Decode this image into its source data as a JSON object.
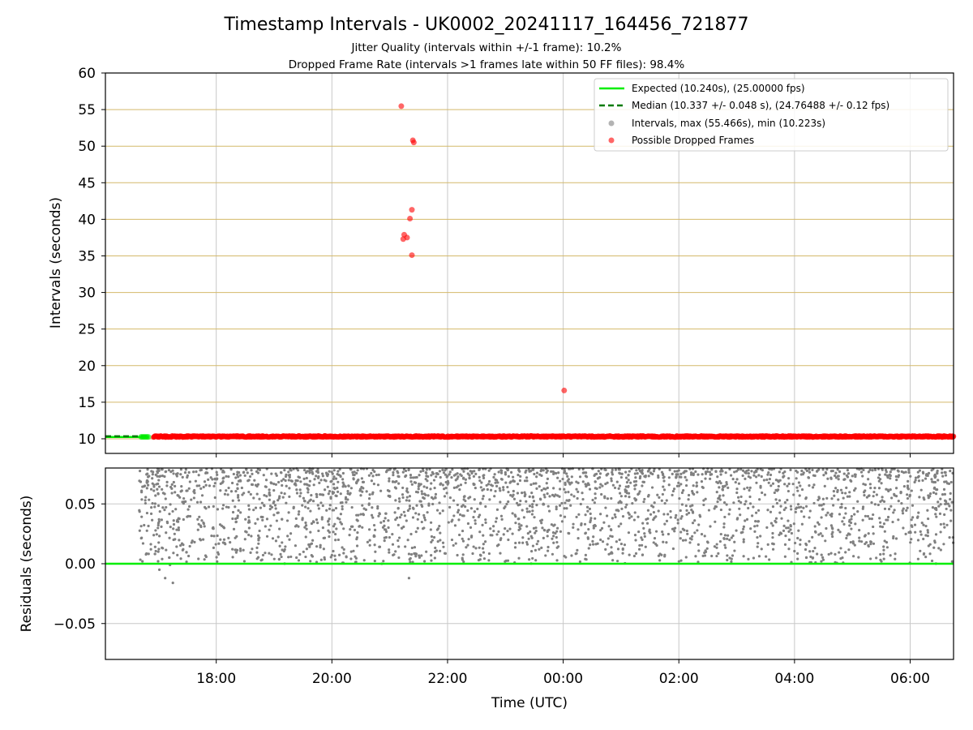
{
  "chart_data": [
    {
      "type": "scatter",
      "title": "Timestamp Intervals - UK0002_20241117_164456_721877",
      "subtitle_lines": [
        "Jitter Quality (intervals within +/-1 frame): 10.2%",
        "Dropped Frame Rate (intervals >1 frames late within 50 FF files): 98.4%"
      ],
      "xlabel": "",
      "ylabel": "Intervals (seconds)",
      "xlim": [
        "2024-11-17 16:05",
        "2024-11-18 06:45"
      ],
      "ylim": [
        8.0,
        60.0
      ],
      "yticks": [
        10,
        15,
        20,
        25,
        30,
        35,
        40,
        45,
        50,
        55,
        60
      ],
      "grid": true,
      "legend_position": "top-right",
      "legend": [
        "Expected (10.240s), (25.00000 fps)",
        "Median (10.337 +/- 0.048 s), (24.76488 +/- 0.12 fps)",
        "Intervals, max (55.466s), min (10.223s)",
        "Possible Dropped Frames"
      ],
      "expected_interval": 10.24,
      "median_interval": 10.337,
      "series": [
        {
          "name": "Possible Dropped Frames",
          "points": [
            {
              "x": "2024-11-17 21:12",
              "y": 55.47
            },
            {
              "x": "2024-11-17 21:24",
              "y": 50.8
            },
            {
              "x": "2024-11-17 21:25",
              "y": 50.5
            },
            {
              "x": "2024-11-17 21:23",
              "y": 41.3
            },
            {
              "x": "2024-11-17 21:21",
              "y": 40.1
            },
            {
              "x": "2024-11-17 21:15",
              "y": 37.9
            },
            {
              "x": "2024-11-17 21:18",
              "y": 37.5
            },
            {
              "x": "2024-11-17 21:14",
              "y": 37.3
            },
            {
              "x": "2024-11-17 21:23",
              "y": 35.1
            },
            {
              "x": "2024-11-18 00:01",
              "y": 16.6
            }
          ],
          "dense_band": {
            "x_start": "2024-11-17 16:55",
            "x_end": "2024-11-18 06:45",
            "y_min": 10.22,
            "y_max": 10.4
          }
        }
      ]
    },
    {
      "type": "scatter",
      "title": "",
      "xlabel": "Time (UTC)",
      "ylabel": "Residuals (seconds)",
      "xlim": [
        "2024-11-17 16:05",
        "2024-11-18 06:45"
      ],
      "ylim": [
        -0.08,
        0.08
      ],
      "yticks": [
        "−0.05",
        "0.00",
        "0.05"
      ],
      "xticks": [
        "18:00",
        "20:00",
        "22:00",
        "00:00",
        "02:00",
        "04:00",
        "06:00"
      ],
      "grid": true,
      "reference_line": 0.0,
      "series": [
        {
          "name": "",
          "distribution": {
            "x_start": "2024-11-17 16:40",
            "x_end": "2024-11-18 06:45",
            "y_min": -0.017,
            "y_max": 0.08,
            "approx_count": 2800
          },
          "low_points": [
            {
              "x": "2024-11-17 17:01",
              "y": -0.005
            },
            {
              "x": "2024-11-17 17:07",
              "y": -0.012
            },
            {
              "x": "2024-11-17 17:15",
              "y": -0.016
            },
            {
              "x": "2024-11-17 17:12",
              "y": -0.001
            },
            {
              "x": "2024-11-17 21:20",
              "y": -0.012
            }
          ]
        }
      ]
    }
  ],
  "colors": {
    "expected": "#00ee00",
    "median": "#007a00",
    "intervals": "#808080",
    "dropped": "#ff0000",
    "hgrid_top": "#d4b96a",
    "grid": "#c8c8c8"
  }
}
